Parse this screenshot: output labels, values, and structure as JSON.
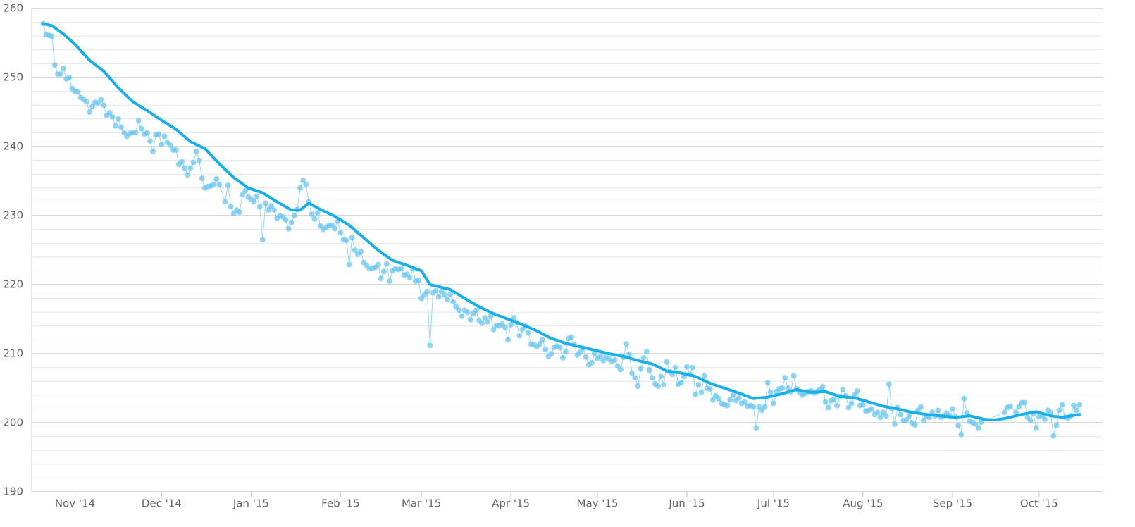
{
  "chart_data": {
    "type": "line",
    "xlim": [
      -15,
      356
    ],
    "xticks": [
      {
        "value": 0,
        "label": "Nov '14"
      },
      {
        "value": 30,
        "label": "Dec '14"
      },
      {
        "value": 61,
        "label": "Jan '15"
      },
      {
        "value": 92,
        "label": "Feb '15"
      },
      {
        "value": 120,
        "label": "Mar '15"
      },
      {
        "value": 151,
        "label": "Apr '15"
      },
      {
        "value": 181,
        "label": "May '15"
      },
      {
        "value": 212,
        "label": "Jun '15"
      },
      {
        "value": 242,
        "label": "Jul '15"
      },
      {
        "value": 273,
        "label": "Aug '15"
      },
      {
        "value": 304,
        "label": "Sep '15"
      },
      {
        "value": 334,
        "label": "Oct '15"
      }
    ],
    "ylim": [
      190,
      260
    ],
    "yticks": [
      190,
      200,
      210,
      220,
      230,
      240,
      250,
      260
    ],
    "yminor": [
      192,
      194,
      196,
      198,
      202,
      204,
      206,
      208,
      212,
      214,
      216,
      218,
      222,
      224,
      226,
      228,
      232,
      234,
      236,
      238,
      242,
      244,
      246,
      248,
      252,
      254,
      256,
      258
    ],
    "grid": true,
    "series": [
      {
        "color": "#6ec6ee",
        "marker": true,
        "line_width": 1,
        "x": [
          -11,
          -10,
          -9,
          -8,
          -7,
          -6,
          -5,
          -4,
          -3,
          -2,
          -1,
          0,
          1,
          2,
          3,
          4,
          5,
          6,
          7,
          8,
          9,
          10,
          11,
          12,
          13,
          14,
          15,
          16,
          17,
          18,
          19,
          20,
          21,
          22,
          23,
          24,
          25,
          26,
          27,
          28,
          29,
          30,
          31,
          32,
          33,
          34,
          35,
          36,
          37,
          38,
          39,
          40,
          41,
          42,
          43,
          44,
          45,
          46,
          47,
          48,
          49,
          50,
          52,
          53,
          54,
          55,
          56,
          57,
          58,
          59,
          60,
          61,
          62,
          63,
          64,
          65,
          66,
          67,
          68,
          69,
          70,
          71,
          72,
          73,
          74,
          75,
          76,
          77,
          78,
          79,
          80,
          81,
          82,
          83,
          84,
          85,
          86,
          87,
          88,
          89,
          90,
          91,
          92,
          93,
          94,
          95,
          96,
          97,
          98,
          99,
          100,
          101,
          102,
          103,
          104,
          105,
          106,
          107,
          108,
          109,
          110,
          111,
          112,
          113,
          114,
          115,
          116,
          117,
          118,
          119,
          120,
          121,
          122,
          123,
          124,
          125,
          126,
          127,
          128,
          129,
          130,
          131,
          132,
          133,
          134,
          135,
          136,
          137,
          138,
          139,
          140,
          141,
          142,
          143,
          144,
          145,
          146,
          147,
          148,
          149,
          150,
          151,
          152,
          153,
          154,
          155,
          156,
          157,
          158,
          159,
          160,
          161,
          162,
          163,
          164,
          165,
          166,
          167,
          168,
          169,
          170,
          171,
          172,
          173,
          174,
          175,
          176,
          177,
          178,
          179,
          180,
          181,
          182,
          183,
          184,
          185,
          186,
          187,
          188,
          189,
          190,
          191,
          192,
          193,
          194,
          195,
          196,
          197,
          198,
          199,
          200,
          201,
          202,
          203,
          204,
          205,
          206,
          207,
          208,
          209,
          210,
          211,
          212,
          213,
          214,
          215,
          216,
          217,
          218,
          219,
          220,
          221,
          222,
          223,
          224,
          225,
          226,
          227,
          228,
          229,
          230,
          231,
          232,
          233,
          234,
          235,
          236,
          237,
          238,
          239,
          240,
          241,
          242,
          243,
          244,
          245,
          246,
          247,
          248,
          249,
          250,
          251,
          252,
          253,
          254,
          255,
          256,
          257,
          258,
          259,
          260,
          261,
          262,
          263,
          264,
          265,
          266,
          267,
          268,
          269,
          270,
          271,
          272,
          273,
          274,
          275,
          276,
          277,
          278,
          279,
          280,
          281,
          282,
          283,
          284,
          285,
          286,
          287,
          288,
          289,
          290,
          291,
          292,
          293,
          294,
          295,
          296,
          297,
          298,
          299,
          300,
          301,
          302,
          303,
          304,
          305,
          306,
          307,
          308,
          309,
          310,
          311,
          312,
          313,
          314,
          322,
          323,
          324,
          326,
          327,
          328,
          329,
          330,
          331,
          332,
          333,
          334,
          335,
          336,
          337,
          338,
          339,
          340,
          341,
          342,
          343,
          344,
          345,
          346,
          347,
          348
        ],
        "values": [
          257.8,
          256.2,
          256.1,
          256.0,
          251.8,
          250.5,
          250.5,
          251.3,
          249.8,
          250.0,
          248.4,
          248.0,
          247.9,
          247.1,
          246.8,
          246.5,
          245.0,
          245.8,
          246.4,
          246.3,
          246.8,
          246.0,
          244.5,
          244.9,
          244.3,
          243.0,
          244.0,
          242.8,
          242.0,
          241.5,
          241.9,
          242.0,
          242.0,
          243.8,
          242.6,
          241.8,
          242.0,
          240.8,
          239.3,
          241.7,
          241.8,
          240.3,
          241.5,
          240.6,
          240.2,
          239.5,
          239.5,
          237.4,
          237.8,
          236.9,
          235.9,
          236.9,
          237.7,
          239.3,
          238.0,
          235.4,
          234.0,
          234.2,
          234.3,
          234.5,
          235.3,
          234.5,
          232.0,
          234.4,
          231.3,
          230.3,
          230.8,
          230.5,
          233.0,
          233.6,
          232.7,
          232.4,
          232.0,
          232.8,
          231.3,
          226.5,
          231.8,
          230.8,
          231.4,
          230.8,
          229.6,
          230.0,
          229.8,
          229.4,
          228.1,
          229.0,
          230.0,
          230.9,
          234.0,
          235.1,
          234.5,
          232.0,
          230.2,
          229.5,
          230.4,
          228.5,
          228.0,
          228.3,
          228.6,
          228.6,
          228.1,
          229.2,
          227.5,
          226.5,
          226.4,
          222.9,
          226.8,
          225.0,
          224.4,
          224.8,
          223.2,
          222.8,
          222.3,
          222.4,
          222.5,
          222.9,
          220.9,
          221.9,
          223.0,
          220.5,
          222.0,
          222.3,
          222.2,
          222.3,
          221.4,
          221.5,
          221.0,
          222.3,
          220.5,
          220.6,
          218.0,
          218.5,
          219.0,
          211.2,
          218.8,
          219.1,
          218.2,
          219.0,
          218.5,
          217.8,
          218.6,
          217.5,
          216.8,
          216.3,
          215.4,
          216.3,
          216.0,
          214.9,
          215.8,
          216.3,
          214.8,
          214.4,
          215.2,
          214.6,
          215.4,
          213.5,
          214.1,
          214.0,
          214.3,
          213.8,
          212.0,
          214.2,
          215.2,
          214.5,
          212.6,
          213.5,
          214.0,
          213.0,
          211.4,
          211.3,
          211.0,
          211.4,
          212.0,
          210.6,
          209.6,
          210.0,
          210.9,
          211.1,
          210.9,
          209.4,
          210.3,
          212.2,
          212.4,
          211.3,
          209.8,
          210.2,
          210.8,
          209.5,
          208.4,
          208.7,
          210.0,
          209.3,
          209.6,
          209.0,
          209.5,
          209.2,
          208.9,
          209.1,
          208.2,
          207.7,
          209.5,
          211.4,
          209.9,
          207.2,
          206.5,
          205.3,
          207.8,
          209.4,
          210.3,
          207.6,
          206.5,
          205.6,
          205.3,
          206.7,
          205.5,
          208.8,
          207.4,
          207.0,
          208.0,
          205.6,
          205.8,
          206.7,
          208.1,
          207.0,
          208.0,
          204.1,
          205.5,
          204.4,
          206.8,
          205.0,
          204.9,
          203.3,
          203.9,
          203.5,
          202.8,
          202.6,
          202.5,
          203.3,
          204.0,
          203.2,
          203.6,
          202.8,
          203.0,
          202.4,
          202.5,
          202.3,
          199.2,
          202.3,
          201.8,
          202.3,
          205.8,
          204.4,
          202.8,
          204.5,
          204.9,
          205.0,
          206.5,
          205.0,
          204.5,
          206.8,
          204.9,
          204.4,
          204.0,
          204.3,
          204.5,
          204.6,
          204.3,
          204.5,
          204.8,
          205.2,
          203.0,
          202.2,
          203.2,
          203.4,
          202.5,
          203.8,
          204.8,
          203.9,
          202.2,
          202.8,
          204.0,
          204.6,
          202.5,
          202.6,
          201.7,
          201.8,
          202.0,
          201.2,
          201.5,
          200.8,
          201.5,
          201.0,
          205.6,
          202.0,
          199.8,
          202.2,
          201.2,
          200.3,
          200.4,
          201.0,
          200.0,
          199.7,
          201.8,
          202.3,
          200.3,
          201.0,
          200.8,
          201.5,
          201.0,
          201.8,
          200.8,
          201.0,
          201.4,
          201.0,
          202.0,
          200.9,
          199.6,
          198.3,
          203.5,
          201.4,
          200.2,
          200.0,
          199.8,
          199.2,
          200.1,
          201.5,
          202.2,
          202.4,
          201.5,
          202.3,
          202.9,
          202.9,
          200.8,
          200.3,
          201.3,
          199.2,
          200.9,
          201.0,
          200.5,
          201.8,
          201.5,
          198.1,
          199.6,
          201.8,
          202.6,
          200.8,
          200.7,
          201.0,
          202.5,
          201.8,
          202.6
        ]
      },
      {
        "color": "#19aee8",
        "marker": false,
        "line_width": 4,
        "x": [
          -11,
          -8,
          -4,
          0,
          5,
          10,
          15,
          20,
          25,
          30,
          35,
          40,
          45,
          50,
          55,
          60,
          65,
          70,
          75,
          78,
          81,
          85,
          90,
          95,
          100,
          105,
          110,
          115,
          120,
          123,
          130,
          135,
          140,
          145,
          150,
          155,
          160,
          165,
          170,
          175,
          180,
          185,
          190,
          195,
          200,
          205,
          210,
          215,
          220,
          225,
          230,
          235,
          240,
          245,
          250,
          255,
          260,
          265,
          270,
          275,
          280,
          285,
          290,
          295,
          300,
          305,
          310,
          315,
          318,
          322,
          328,
          333,
          338,
          342,
          348
        ],
        "values": [
          257.8,
          257.5,
          256.3,
          254.8,
          252.5,
          250.9,
          248.5,
          246.5,
          245.2,
          243.8,
          242.5,
          240.7,
          239.7,
          237.5,
          235.5,
          234.0,
          233.3,
          232.0,
          230.8,
          230.8,
          231.8,
          230.9,
          229.9,
          228.6,
          226.8,
          225.0,
          223.5,
          222.8,
          222.0,
          220.0,
          219.3,
          218.0,
          216.8,
          215.8,
          215.0,
          214.2,
          213.3,
          212.2,
          211.5,
          211.0,
          210.5,
          210.0,
          209.6,
          209.0,
          208.5,
          207.5,
          207.2,
          206.7,
          205.7,
          205.0,
          204.3,
          203.5,
          203.7,
          204.2,
          204.8,
          204.4,
          204.5,
          203.8,
          203.6,
          203.0,
          202.4,
          202.0,
          201.5,
          201.2,
          201.0,
          200.8,
          201.0,
          200.5,
          200.4,
          200.6,
          201.2,
          201.6,
          201.0,
          200.8,
          201.2
        ]
      }
    ]
  }
}
